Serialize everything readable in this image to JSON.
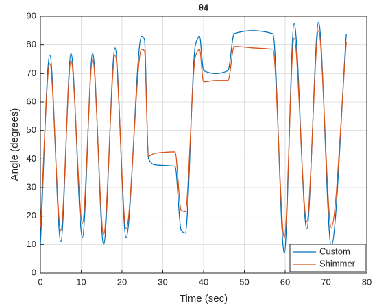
{
  "chart_data": {
    "type": "line",
    "title": "θ4",
    "x_label": "Time (sec)",
    "y_label": "Angle (degrees)",
    "x": [
      0,
      2.3,
      5,
      7.5,
      10.3,
      12.8,
      15.5,
      18.3,
      21,
      24.8,
      25.5,
      26.5,
      28,
      33,
      34.5,
      35.5,
      38,
      39,
      40,
      43,
      46,
      47.5,
      52,
      57,
      59.8,
      62.2,
      65.3,
      68.2,
      71.3,
      75
    ],
    "series": [
      {
        "name": "Custom",
        "color": "#0072BD",
        "values": [
          10,
          76.5,
          11,
          77,
          12.5,
          77,
          10,
          79,
          12.5,
          83,
          82,
          40,
          38,
          37.5,
          15,
          14,
          80,
          83,
          71,
          70,
          71,
          84,
          85,
          84,
          7,
          87.5,
          15.5,
          88,
          9.5,
          84
        ]
      },
      {
        "name": "Shimmer",
        "color": "#D95319",
        "values": [
          16,
          73.5,
          15,
          74.5,
          17.5,
          75,
          13.5,
          76.5,
          15.5,
          78.5,
          78,
          41,
          42,
          42.5,
          22,
          21.5,
          76,
          78.5,
          67,
          67.5,
          67.5,
          79.5,
          79,
          78.5,
          12.5,
          82.5,
          18,
          85,
          16,
          81
        ]
      }
    ],
    "xlim": [
      0,
      80
    ],
    "xticks": [
      0,
      10,
      20,
      30,
      40,
      50,
      60,
      70,
      80
    ],
    "ylim": [
      0,
      90
    ],
    "yticks": [
      0,
      10,
      20,
      30,
      40,
      50,
      60,
      70,
      80,
      90
    ],
    "grid": true,
    "legend": "southeast"
  }
}
